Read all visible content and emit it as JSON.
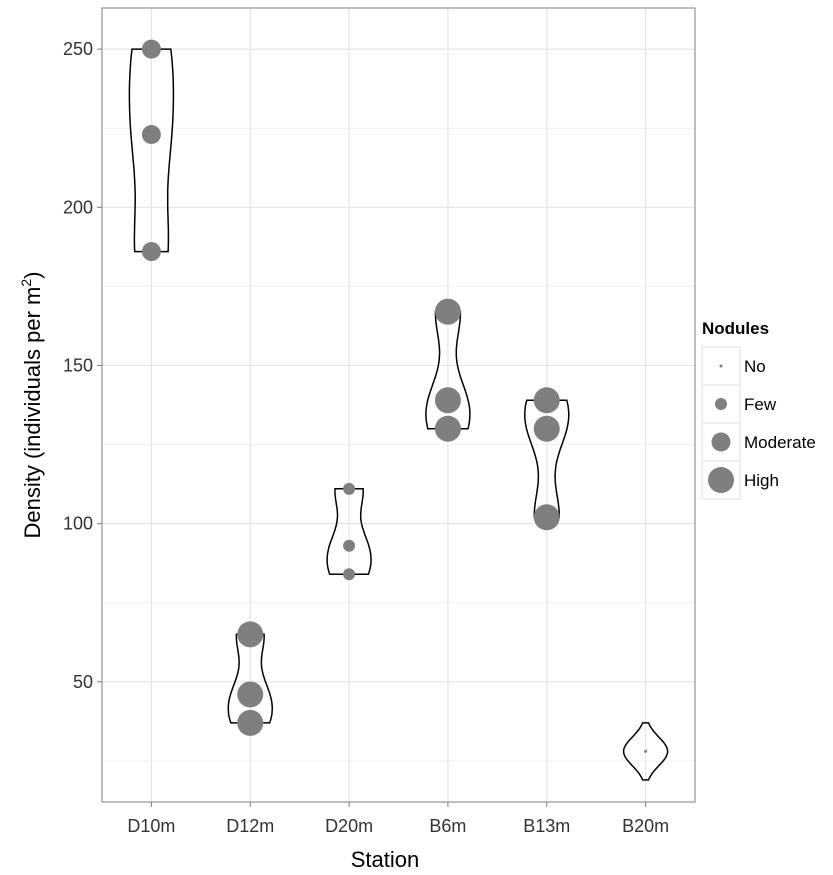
{
  "chart_data": {
    "type": "violin",
    "title": "",
    "xlabel": "Station",
    "ylabel": "Density (individuals per m",
    "ylabel_superscript": "2",
    "ylabel_suffix": ")",
    "categories": [
      "D10m",
      "D12m",
      "D20m",
      "B6m",
      "B13m",
      "B20m"
    ],
    "yticks": [
      50,
      100,
      150,
      200,
      250
    ],
    "ylim": [
      12,
      263
    ],
    "grid": true,
    "legend_position": "right",
    "violins": [
      {
        "station": "D10m",
        "min": 186,
        "max": 250
      },
      {
        "station": "D12m",
        "min": 37,
        "max": 65
      },
      {
        "station": "D20m",
        "min": 84,
        "max": 111
      },
      {
        "station": "B6m",
        "min": 130,
        "max": 167
      },
      {
        "station": "B13m",
        "min": 102,
        "max": 139
      },
      {
        "station": "B20m",
        "min": 19,
        "max": 37
      }
    ],
    "points": [
      {
        "station": "D10m",
        "y": 250,
        "nodules": "Moderate"
      },
      {
        "station": "D10m",
        "y": 223,
        "nodules": "Moderate"
      },
      {
        "station": "D10m",
        "y": 186,
        "nodules": "Moderate"
      },
      {
        "station": "D12m",
        "y": 65,
        "nodules": "High"
      },
      {
        "station": "D12m",
        "y": 46,
        "nodules": "High"
      },
      {
        "station": "D12m",
        "y": 37,
        "nodules": "High"
      },
      {
        "station": "D20m",
        "y": 111,
        "nodules": "Few"
      },
      {
        "station": "D20m",
        "y": 93,
        "nodules": "Few"
      },
      {
        "station": "D20m",
        "y": 84,
        "nodules": "Few"
      },
      {
        "station": "B6m",
        "y": 167,
        "nodules": "High"
      },
      {
        "station": "B6m",
        "y": 139,
        "nodules": "High"
      },
      {
        "station": "B6m",
        "y": 130,
        "nodules": "High"
      },
      {
        "station": "B13m",
        "y": 139,
        "nodules": "High"
      },
      {
        "station": "B13m",
        "y": 130,
        "nodules": "High"
      },
      {
        "station": "B13m",
        "y": 102,
        "nodules": "High"
      },
      {
        "station": "B20m",
        "y": 28,
        "nodules": "No"
      }
    ],
    "legend": {
      "title": "Nodules",
      "items": [
        "No",
        "Few",
        "Moderate",
        "High"
      ]
    },
    "colors": {
      "point": "#7f7f7f",
      "violin_stroke": "#000000",
      "grid_major": "#e6e6e6",
      "grid_minor": "#f2f2f2",
      "panel_border": "#7f7f7f"
    }
  }
}
